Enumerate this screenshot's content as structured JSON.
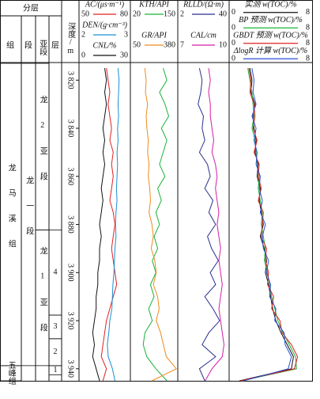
{
  "chart_data": {
    "type": "well-log",
    "header": {
      "strata": "分层",
      "formation": "组",
      "member": "段",
      "submember": "亚段",
      "layer": "层",
      "depth": "深度/m"
    },
    "ylim": [
      3813,
      3945
    ],
    "yticks": [
      {
        "value": 3820,
        "label": "3 820"
      },
      {
        "value": 3840,
        "label": "3 840"
      },
      {
        "value": 3860,
        "label": "3 860"
      },
      {
        "value": 3880,
        "label": "3 880"
      },
      {
        "value": 3900,
        "label": "3 900"
      },
      {
        "value": 3920,
        "label": "3 920"
      },
      {
        "value": 3940,
        "label": "3 940"
      }
    ],
    "strata": {
      "formation": [
        {
          "name": "龙马溪组",
          "top": 3813,
          "bottom": 3938.7
        },
        {
          "name": "五峰组",
          "top": 3938.7,
          "bottom": 3945
        }
      ],
      "member": [
        {
          "name": "龙一段",
          "top": 3813,
          "bottom": 3938.7
        }
      ],
      "submember": [
        {
          "name": "龙2亚段",
          "top": 3813,
          "bottom": 3882.3
        },
        {
          "name": "龙1亚段",
          "top": 3882.3,
          "bottom": 3938.7
        }
      ],
      "layer": [
        {
          "name": "4",
          "top": 3882.3,
          "bottom": 3917.7
        },
        {
          "name": "3",
          "top": 3917.7,
          "bottom": 3927.5
        },
        {
          "name": "2",
          "top": 3927.5,
          "bottom": 3938.7
        },
        {
          "name": "1",
          "top": 3938.7,
          "bottom": 3942.5
        }
      ]
    },
    "depth": [
      3815,
      3820,
      3825,
      3830,
      3835,
      3840,
      3845,
      3850,
      3855,
      3860,
      3865,
      3870,
      3875,
      3880,
      3885,
      3890,
      3895,
      3900,
      3905,
      3910,
      3915,
      3920,
      3925,
      3930,
      3935,
      3940,
      3945
    ],
    "tracks": [
      {
        "series": [
          {
            "name": "AC/(μs·m⁻¹)",
            "color": "#e02020",
            "xlim": [
              50,
              80
            ],
            "values": [
              66,
              67,
              68,
              67,
              68,
              69,
              68,
              70,
              69,
              70,
              69,
              68,
              70,
              71,
              70,
              69,
              70,
              71,
              72,
              70,
              68,
              66,
              65,
              64,
              63,
              66,
              64
            ]
          },
          {
            "name": "DEN/(g·cm⁻³)",
            "color": "#1a8fd6",
            "xlim": [
              2,
              3
            ],
            "values": [
              2.76,
              2.78,
              2.77,
              2.76,
              2.77,
              2.75,
              2.76,
              2.74,
              2.75,
              2.74,
              2.73,
              2.74,
              2.72,
              2.71,
              2.72,
              2.7,
              2.69,
              2.68,
              2.66,
              2.65,
              2.64,
              2.6,
              2.58,
              2.55,
              2.57,
              2.65,
              2.7
            ]
          },
          {
            "name": "CNL/%",
            "color": "#111111",
            "xlim": [
              0,
              30
            ],
            "values": [
              15,
              16,
              15,
              16,
              15,
              14,
              15,
              14,
              15,
              14,
              13,
              14,
              13,
              12,
              13,
              12,
              12,
              11,
              11,
              10,
              10,
              9,
              8,
              9,
              8,
              10,
              12
            ]
          }
        ]
      },
      {
        "series": [
          {
            "name": "KTH/API",
            "color": "#19b23a",
            "xlim": [
              20,
              150
            ],
            "values": [
              110,
              120,
              100,
              115,
              125,
              105,
              120,
              110,
              100,
              115,
              95,
              105,
              90,
              100,
              85,
              95,
              80,
              90,
              75,
              85,
              70,
              80,
              60,
              55,
              65,
              90,
              120
            ]
          },
          {
            "name": "GR/API",
            "color": "#f08a1c",
            "xlim": [
              50,
              380
            ],
            "values": [
              150,
              160,
              155,
              170,
              160,
              165,
              175,
              170,
              180,
              175,
              185,
              190,
              180,
              200,
              210,
              195,
              220,
              230,
              210,
              240,
              250,
              230,
              260,
              280,
              300,
              370,
              200
            ]
          }
        ]
      },
      {
        "series": [
          {
            "name": "RLLD/(Ω·m)",
            "color": "#2b2f8f",
            "xlim": [
              2,
              40
            ],
            "values": [
              18,
              20,
              19,
              17,
              21,
              20,
              22,
              18,
              24,
              26,
              22,
              28,
              25,
              30,
              24,
              27,
              32,
              26,
              30,
              22,
              28,
              33,
              25,
              20,
              30,
              18,
              22
            ]
          },
          {
            "name": "CAL/cm",
            "color": "#d21fa8",
            "xlim": [
              7,
              10
            ],
            "values": [
              8.8,
              8.9,
              8.8,
              8.9,
              8.9,
              9.0,
              9.1,
              9.0,
              9.2,
              9.3,
              9.2,
              9.3,
              9.4,
              9.3,
              9.4,
              9.5,
              9.4,
              9.5,
              9.6,
              9.5,
              9.4,
              9.5,
              9.6,
              9.7,
              9.6,
              9.0,
              8.6
            ]
          }
        ]
      },
      {
        "series": [
          {
            "name": "实测 w(TOC)/%",
            "color": "#111111",
            "xlim": [
              0,
              8
            ],
            "values": [
              2.0,
              2.2,
              2.1,
              2.5,
              2.3,
              2.4,
              2.6,
              2.5,
              2.8,
              2.7,
              3.0,
              2.9,
              3.1,
              3.3,
              3.0,
              3.4,
              3.6,
              3.5,
              3.8,
              4.0,
              4.2,
              4.5,
              5.0,
              5.6,
              6.2,
              6.0,
              1.0
            ]
          },
          {
            "name": "BP 预测 w(TOC)/%",
            "color": "#19b23a",
            "xlim": [
              0,
              8
            ],
            "values": [
              1.8,
              2.0,
              2.2,
              2.3,
              2.4,
              2.2,
              2.5,
              2.6,
              2.7,
              2.9,
              2.8,
              3.0,
              3.2,
              3.1,
              3.3,
              3.5,
              3.4,
              3.7,
              3.9,
              4.1,
              4.4,
              4.7,
              5.2,
              5.8,
              6.4,
              6.5,
              1.2
            ]
          },
          {
            "name": "GBDT 预测 w(TOC)/%",
            "color": "#e02020",
            "xlim": [
              0,
              8
            ],
            "values": [
              1.9,
              2.1,
              2.0,
              2.4,
              2.5,
              2.3,
              2.7,
              2.4,
              2.9,
              2.8,
              3.1,
              2.8,
              3.3,
              3.2,
              3.1,
              3.6,
              3.5,
              3.8,
              3.7,
              4.3,
              4.1,
              4.9,
              5.1,
              6.0,
              6.6,
              6.3,
              1.1
            ]
          },
          {
            "name": "ΔlogR 计算 w(TOC)/%",
            "color": "#2a4fd6",
            "xlim": [
              0,
              8
            ],
            "values": [
              2.2,
              2.4,
              2.3,
              2.6,
              2.2,
              2.6,
              2.4,
              2.7,
              2.6,
              3.0,
              2.9,
              3.2,
              3.0,
              3.5,
              3.2,
              3.3,
              3.8,
              3.6,
              4.0,
              3.9,
              4.5,
              4.4,
              5.3,
              5.4,
              6.0,
              5.7,
              1.4
            ]
          }
        ]
      }
    ]
  }
}
